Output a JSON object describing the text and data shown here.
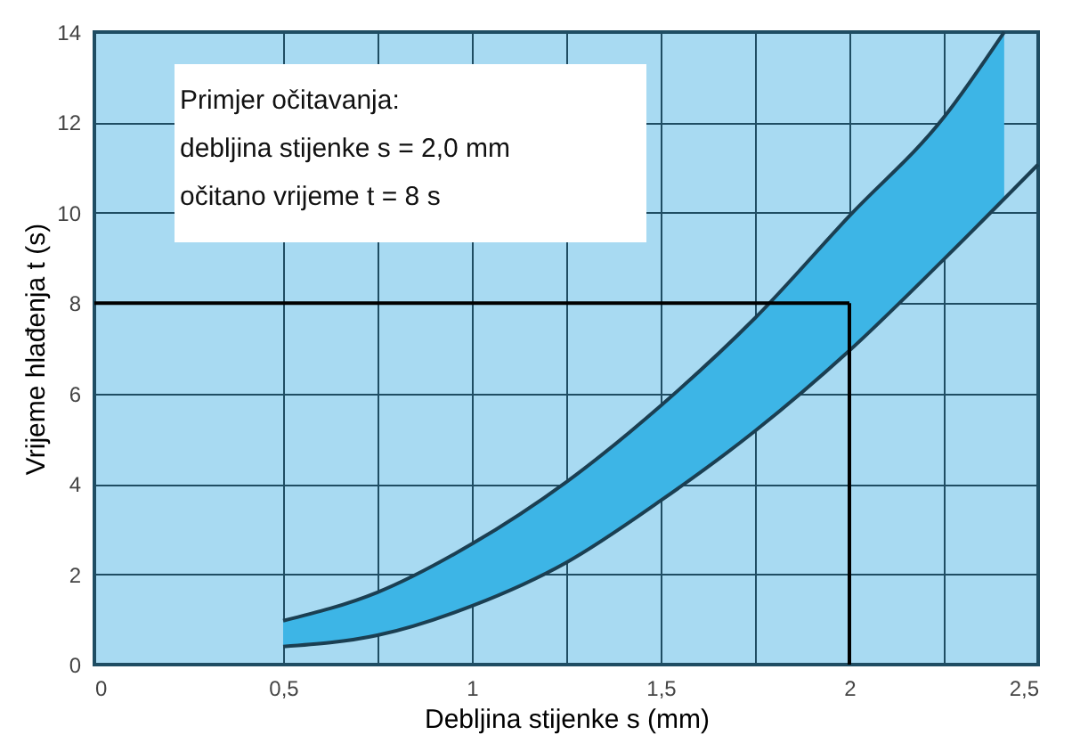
{
  "chart_data": {
    "type": "line",
    "xlabel": "Debljina stijenke   s      (mm)",
    "ylabel": "Vrijeme hlađenja t (s)",
    "xlim": [
      0,
      2.5
    ],
    "ylim": [
      0,
      14
    ],
    "xticks": [
      0,
      {
        "value": 0.5,
        "label": "0,5"
      },
      {
        "value": 0.75,
        "label": null
      },
      1,
      {
        "value": 1.25,
        "label": null
      },
      {
        "value": 1.5,
        "label": "1,5"
      },
      {
        "value": 1.75,
        "label": null
      },
      2,
      {
        "value": 2.25,
        "label": null
      },
      {
        "value": 2.5,
        "label": "2,5"
      }
    ],
    "yticks": [
      0,
      2,
      4,
      6,
      8,
      10,
      12,
      14
    ],
    "grid": true,
    "series": [
      {
        "color": "#1b3f52",
        "x": [
          0.5,
          0.75,
          1,
          1.25,
          1.5,
          1.75,
          2,
          2.25,
          2.41
        ],
        "values": [
          0.97,
          1.6,
          2.67,
          4.04,
          5.73,
          7.67,
          9.93,
          12.11,
          14
        ],
        "upper": [
          0.97,
          1.6,
          2.67,
          4.04,
          5.73,
          7.67,
          9.93,
          12.11,
          14
        ],
        "lower": [
          0.4,
          0.65,
          1.3,
          2.26,
          3.63,
          5.17,
          6.95,
          8.97,
          10.3
        ]
      },
      {
        "color": "#1b3f52",
        "x": [
          0.5,
          0.75,
          1,
          1.25,
          1.5,
          1.75,
          2,
          2.25,
          2.5
        ],
        "values": [
          0.4,
          0.65,
          1.3,
          2.26,
          3.63,
          5.17,
          6.95,
          8.97,
          11.07
        ]
      }
    ],
    "ref_lines": [
      {
        "axis": "y",
        "value": 8,
        "color": "#000000"
      },
      {
        "axis": "x",
        "value": 2,
        "color": "#000000"
      }
    ],
    "annotations": [
      "Primjer očitavanja:",
      "debljina stijenke s = 2,0 mm",
      "očitano vrijeme  t = 8 s"
    ]
  }
}
